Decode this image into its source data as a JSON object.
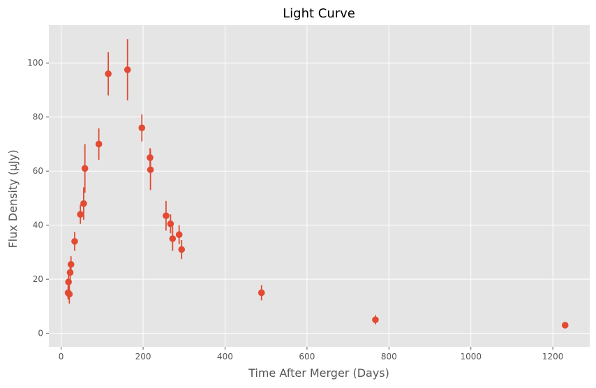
{
  "chart_data": {
    "type": "scatter",
    "title": "Light Curve",
    "xlabel": "Time After Merger (Days)",
    "ylabel": "Flux Density (μJy)",
    "xlim": [
      -30,
      1290
    ],
    "ylim": [
      -5,
      114
    ],
    "xticks": [
      0,
      200,
      400,
      600,
      800,
      1000,
      1200
    ],
    "yticks": [
      0,
      20,
      40,
      60,
      80,
      100
    ],
    "grid": true,
    "style": "ggplot",
    "colors": {
      "marker": "#E24A33",
      "panel": "#E5E5E5",
      "grid": "#FFFFFF",
      "text": "#555555",
      "title": "#000000"
    },
    "series": [
      {
        "marker": "circle",
        "points": [
          {
            "x": 17,
            "y": 15.0,
            "err": 2.5
          },
          {
            "x": 18,
            "y": 19.0,
            "err": 3.0
          },
          {
            "x": 20,
            "y": 14.5,
            "err": 3.5
          },
          {
            "x": 22,
            "y": 22.5,
            "err": 3.5
          },
          {
            "x": 24,
            "y": 25.5,
            "err": 3.0
          },
          {
            "x": 33,
            "y": 34.0,
            "err": 3.5
          },
          {
            "x": 47,
            "y": 44.0,
            "err": 3.5
          },
          {
            "x": 55,
            "y": 48.0,
            "err": 6.0
          },
          {
            "x": 58,
            "y": 61.0,
            "err": 9.0
          },
          {
            "x": 92,
            "y": 70.0,
            "err": 5.8
          },
          {
            "x": 115,
            "y": 96.0,
            "err": 8.0
          },
          {
            "x": 162,
            "y": 97.5,
            "err": 11.3
          },
          {
            "x": 197,
            "y": 76.0,
            "err": 5.0
          },
          {
            "x": 217,
            "y": 65.0,
            "err": 3.5
          },
          {
            "x": 218,
            "y": 60.5,
            "err": 7.5
          },
          {
            "x": 256,
            "y": 43.5,
            "err": 5.5
          },
          {
            "x": 267,
            "y": 40.5,
            "err": 3.5
          },
          {
            "x": 272,
            "y": 35.0,
            "err": 4.5
          },
          {
            "x": 288,
            "y": 36.5,
            "err": 3.5
          },
          {
            "x": 294,
            "y": 31.0,
            "err": 3.5
          },
          {
            "x": 489,
            "y": 15.0,
            "err": 2.8
          },
          {
            "x": 767,
            "y": 5.0,
            "err": 1.7
          },
          {
            "x": 1230,
            "y": 3.0,
            "err": 0.8
          }
        ]
      }
    ]
  }
}
